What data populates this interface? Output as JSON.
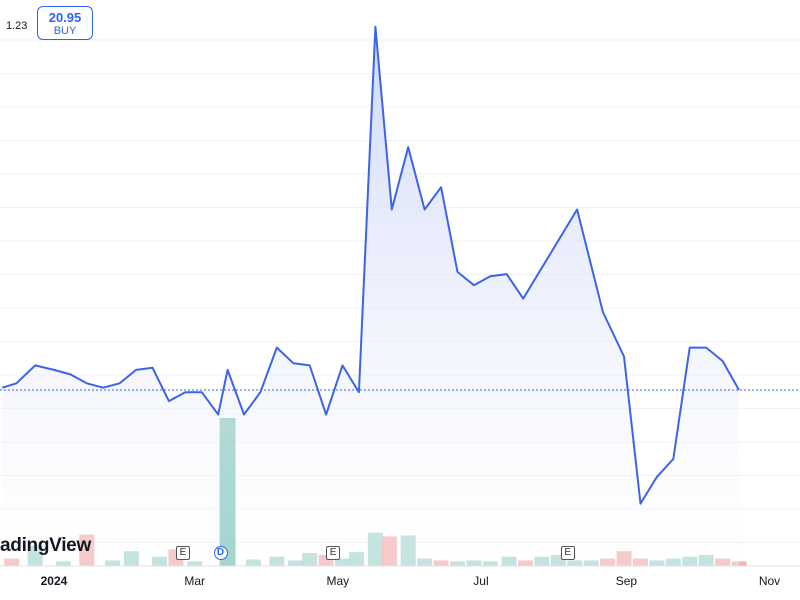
{
  "price_tag": {
    "value": "20.95",
    "action": "BUY"
  },
  "y_axis_top_label": "1.23",
  "watermark": "adingView",
  "event_markers": [
    {
      "type": "E",
      "label": "E",
      "date": "2024-02-25"
    },
    {
      "type": "D",
      "label": "D",
      "date": "2024-03-12"
    },
    {
      "type": "E",
      "label": "E",
      "date": "2024-04-29"
    },
    {
      "type": "E",
      "label": "E",
      "date": "2024-08-07"
    }
  ],
  "colors": {
    "line": "#3d63e8",
    "area_top": "#c9d3f7",
    "area_bottom": "#ffffff",
    "volume_up": "#8fcac1",
    "volume_down": "#ee9a9a",
    "volume_highlight": "#6ebdb0",
    "last_price_line": "#2962ff",
    "grid": "#eef0f4"
  },
  "chart_data": {
    "type": "area",
    "x_axis_ticks": [
      {
        "label": "2024",
        "date": "2024-01-01",
        "bold": true
      },
      {
        "label": "Mar",
        "date": "2024-03-01"
      },
      {
        "label": "May",
        "date": "2024-05-01"
      },
      {
        "label": "Jul",
        "date": "2024-07-01"
      },
      {
        "label": "Sep",
        "date": "2024-09-01"
      },
      {
        "label": "Nov",
        "date": "2024-11-01"
      }
    ],
    "xlim": [
      "2023-12-09",
      "2024-11-14"
    ],
    "ylim": [
      0.02,
      1.29
    ],
    "grid": true,
    "series": [
      {
        "points": [
          {
            "x": "2023-12-10",
            "y": 0.42
          },
          {
            "x": "2023-12-16",
            "y": 0.43
          },
          {
            "x": "2023-12-24",
            "y": 0.47
          },
          {
            "x": "2024-01-01",
            "y": 0.46
          },
          {
            "x": "2024-01-08",
            "y": 0.45
          },
          {
            "x": "2024-01-15",
            "y": 0.43
          },
          {
            "x": "2024-01-22",
            "y": 0.42
          },
          {
            "x": "2024-01-29",
            "y": 0.43
          },
          {
            "x": "2024-02-05",
            "y": 0.46
          },
          {
            "x": "2024-02-12",
            "y": 0.465
          },
          {
            "x": "2024-02-19",
            "y": 0.39
          },
          {
            "x": "2024-02-26",
            "y": 0.41
          },
          {
            "x": "2024-03-04",
            "y": 0.41
          },
          {
            "x": "2024-03-11",
            "y": 0.36
          },
          {
            "x": "2024-03-15",
            "y": 0.46
          },
          {
            "x": "2024-03-22",
            "y": 0.36
          },
          {
            "x": "2024-03-29",
            "y": 0.41
          },
          {
            "x": "2024-04-05",
            "y": 0.51
          },
          {
            "x": "2024-04-12",
            "y": 0.475
          },
          {
            "x": "2024-04-19",
            "y": 0.47
          },
          {
            "x": "2024-04-26",
            "y": 0.36
          },
          {
            "x": "2024-05-03",
            "y": 0.47
          },
          {
            "x": "2024-05-10",
            "y": 0.41
          },
          {
            "x": "2024-05-17",
            "y": 1.23
          },
          {
            "x": "2024-05-24",
            "y": 0.82
          },
          {
            "x": "2024-05-31",
            "y": 0.96
          },
          {
            "x": "2024-06-07",
            "y": 0.82
          },
          {
            "x": "2024-06-14",
            "y": 0.87
          },
          {
            "x": "2024-06-21",
            "y": 0.68
          },
          {
            "x": "2024-06-28",
            "y": 0.65
          },
          {
            "x": "2024-07-05",
            "y": 0.67
          },
          {
            "x": "2024-07-12",
            "y": 0.675
          },
          {
            "x": "2024-07-19",
            "y": 0.62
          },
          {
            "x": "2024-08-11",
            "y": 0.82
          },
          {
            "x": "2024-08-22",
            "y": 0.59
          },
          {
            "x": "2024-08-31",
            "y": 0.49
          },
          {
            "x": "2024-09-07",
            "y": 0.16
          },
          {
            "x": "2024-09-14",
            "y": 0.22
          },
          {
            "x": "2024-09-21",
            "y": 0.26
          },
          {
            "x": "2024-09-28",
            "y": 0.51
          },
          {
            "x": "2024-10-05",
            "y": 0.51
          },
          {
            "x": "2024-10-12",
            "y": 0.48
          },
          {
            "x": "2024-10-19",
            "y": 0.415
          }
        ]
      }
    ],
    "last_value": 0.415,
    "volume": {
      "ylim": [
        0,
        1.6
      ],
      "bars": [
        {
          "x": "2023-12-14",
          "v": 0.08,
          "dir": "down"
        },
        {
          "x": "2023-12-24",
          "v": 0.22,
          "dir": "up"
        },
        {
          "x": "2024-01-05",
          "v": 0.05,
          "dir": "up"
        },
        {
          "x": "2024-01-15",
          "v": 0.34,
          "dir": "down"
        },
        {
          "x": "2024-01-26",
          "v": 0.06,
          "dir": "up"
        },
        {
          "x": "2024-02-03",
          "v": 0.16,
          "dir": "up"
        },
        {
          "x": "2024-02-15",
          "v": 0.1,
          "dir": "up"
        },
        {
          "x": "2024-02-22",
          "v": 0.18,
          "dir": "down"
        },
        {
          "x": "2024-03-01",
          "v": 0.05,
          "dir": "up"
        },
        {
          "x": "2024-03-15",
          "v": 1.6,
          "dir": "highlight"
        },
        {
          "x": "2024-03-26",
          "v": 0.07,
          "dir": "up"
        },
        {
          "x": "2024-04-05",
          "v": 0.1,
          "dir": "up"
        },
        {
          "x": "2024-04-13",
          "v": 0.06,
          "dir": "up"
        },
        {
          "x": "2024-04-19",
          "v": 0.14,
          "dir": "up"
        },
        {
          "x": "2024-04-26",
          "v": 0.12,
          "dir": "down"
        },
        {
          "x": "2024-05-03",
          "v": 0.08,
          "dir": "up"
        },
        {
          "x": "2024-05-09",
          "v": 0.15,
          "dir": "up"
        },
        {
          "x": "2024-05-17",
          "v": 0.36,
          "dir": "up"
        },
        {
          "x": "2024-05-23",
          "v": 0.32,
          "dir": "down"
        },
        {
          "x": "2024-05-31",
          "v": 0.33,
          "dir": "up"
        },
        {
          "x": "2024-06-07",
          "v": 0.08,
          "dir": "up"
        },
        {
          "x": "2024-06-14",
          "v": 0.06,
          "dir": "down"
        },
        {
          "x": "2024-06-21",
          "v": 0.05,
          "dir": "up"
        },
        {
          "x": "2024-06-28",
          "v": 0.06,
          "dir": "up"
        },
        {
          "x": "2024-07-05",
          "v": 0.05,
          "dir": "up"
        },
        {
          "x": "2024-07-13",
          "v": 0.1,
          "dir": "up"
        },
        {
          "x": "2024-07-20",
          "v": 0.06,
          "dir": "down"
        },
        {
          "x": "2024-07-27",
          "v": 0.1,
          "dir": "up"
        },
        {
          "x": "2024-08-03",
          "v": 0.12,
          "dir": "up"
        },
        {
          "x": "2024-08-10",
          "v": 0.06,
          "dir": "up"
        },
        {
          "x": "2024-08-17",
          "v": 0.06,
          "dir": "up"
        },
        {
          "x": "2024-08-24",
          "v": 0.08,
          "dir": "down"
        },
        {
          "x": "2024-08-31",
          "v": 0.16,
          "dir": "down"
        },
        {
          "x": "2024-09-07",
          "v": 0.08,
          "dir": "down"
        },
        {
          "x": "2024-09-14",
          "v": 0.06,
          "dir": "up"
        },
        {
          "x": "2024-09-21",
          "v": 0.08,
          "dir": "up"
        },
        {
          "x": "2024-09-28",
          "v": 0.1,
          "dir": "up"
        },
        {
          "x": "2024-10-05",
          "v": 0.12,
          "dir": "up"
        },
        {
          "x": "2024-10-12",
          "v": 0.08,
          "dir": "down"
        },
        {
          "x": "2024-10-19",
          "v": 0.05,
          "dir": "down"
        }
      ]
    }
  }
}
